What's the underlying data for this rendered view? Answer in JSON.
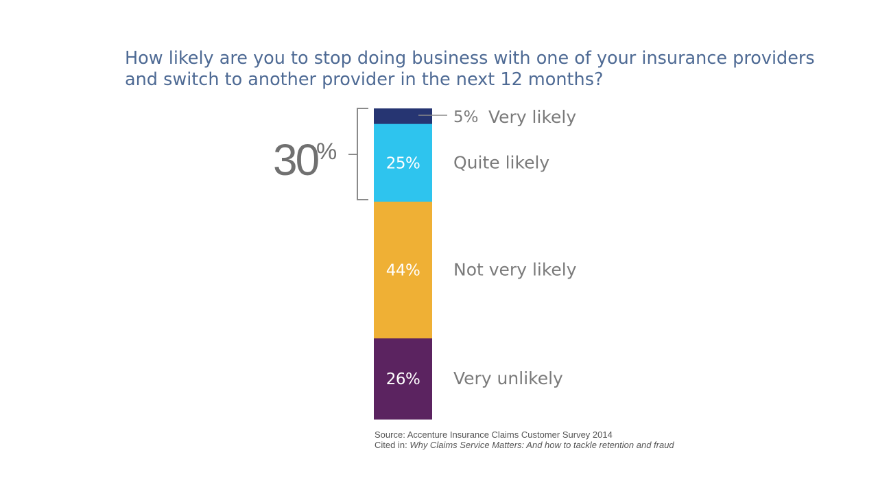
{
  "chart_data": {
    "type": "bar",
    "stacked": true,
    "title_line1": "How likely are you to stop doing business with one of your insurance providers",
    "title_line2": "and switch to another provider in the next 12 months?",
    "categories": [
      "Very likely",
      "Quite likely",
      "Not very likely",
      "Very unlikely"
    ],
    "values": [
      5,
      25,
      44,
      26
    ],
    "value_labels": [
      "5%",
      "25%",
      "44%",
      "26%"
    ],
    "colors": [
      "#263572",
      "#2ec4ee",
      "#efb035",
      "#5b2360"
    ],
    "bracket": {
      "value": "30",
      "unit": "%",
      "covers": [
        "Very likely",
        "Quite likely"
      ]
    },
    "source": {
      "line1": "Source: Accenture Insurance Claims Customer Survey 2014",
      "cited_prefix": "Cited in: ",
      "cited_title": "Why Claims Service Matters: And how to tackle retention and fraud"
    }
  }
}
